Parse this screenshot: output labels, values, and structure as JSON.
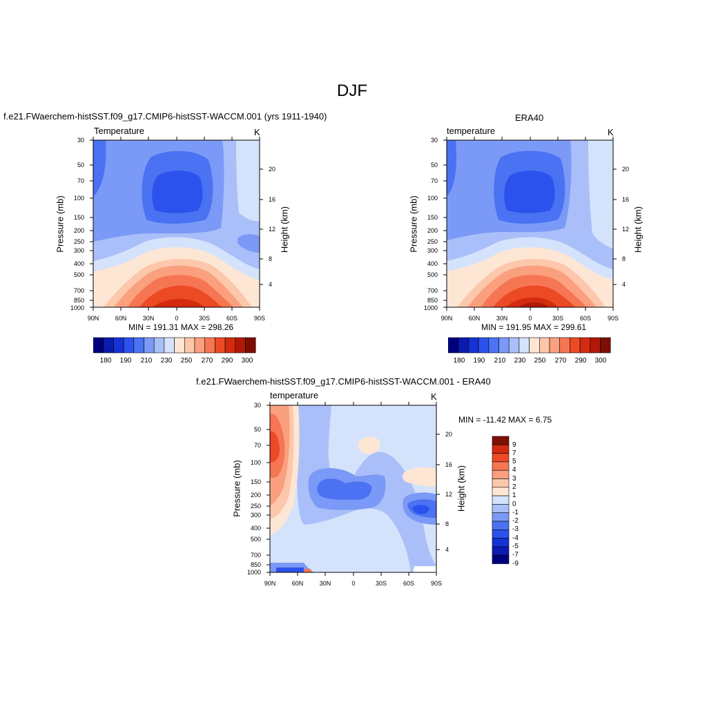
{
  "figure": {
    "title": "DJF"
  },
  "colors": {
    "abs_levels": [
      "#00007f",
      "#0a1bae",
      "#1532d6",
      "#2b52ec",
      "#4a72f2",
      "#7b99f6",
      "#aabff9",
      "#d4e3fb",
      "#fee6d4",
      "#fcc7ab",
      "#faa07e",
      "#f67654",
      "#ec4a24",
      "#d42a10",
      "#b01906",
      "#7d0e03"
    ],
    "diff_levels": [
      "#00007f",
      "#0a1bae",
      "#1532d6",
      "#2b52ec",
      "#4a72f2",
      "#7b99f6",
      "#aabff9",
      "#d4e3fb",
      "#fee6d4",
      "#fcc7ab",
      "#faa07e",
      "#f67654",
      "#ec4a24",
      "#d42a10",
      "#7d0e03"
    ]
  },
  "chart_data": [
    {
      "type": "contour",
      "id": "model",
      "panel_title": "f.e21.FWaerchem-histSST.f09_g17.CMIP6-histSST-WACCM.001 (yrs 1911-1940)",
      "title_left": "Temperature",
      "title_right": "K",
      "xlabel": "",
      "ylabel": "Pressure (mb)",
      "ylabel_right": "Height (km)",
      "x_ticks": [
        "90N",
        "60N",
        "30N",
        "0",
        "30S",
        "60S",
        "90S"
      ],
      "y_ticks": [
        30,
        50,
        70,
        100,
        150,
        200,
        250,
        300,
        400,
        500,
        700,
        850,
        1000
      ],
      "y_right_ticks": [
        4,
        8,
        12,
        16,
        20
      ],
      "ylim": [
        30,
        1000
      ],
      "y_scale": "log",
      "stats": "MIN = 191.31  MAX = 298.26",
      "min": 191.31,
      "max": 298.26,
      "colorbar_labels": [
        "180",
        "190",
        "210",
        "230",
        "250",
        "270",
        "290",
        "300"
      ]
    },
    {
      "type": "contour",
      "id": "era40",
      "panel_title": "ERA40",
      "title_left": "temperature",
      "title_right": "K",
      "xlabel": "",
      "ylabel": "Pressure (mb)",
      "ylabel_right": "Height (km)",
      "x_ticks": [
        "90N",
        "60N",
        "30N",
        "0",
        "30S",
        "60S",
        "90S"
      ],
      "y_ticks": [
        30,
        50,
        70,
        100,
        150,
        200,
        250,
        300,
        400,
        500,
        700,
        850,
        1000
      ],
      "y_right_ticks": [
        4,
        8,
        12,
        16,
        20
      ],
      "ylim": [
        30,
        1000
      ],
      "y_scale": "log",
      "stats": "MIN = 191.95  MAX = 299.61",
      "min": 191.95,
      "max": 299.61,
      "colorbar_labels": [
        "180",
        "190",
        "210",
        "230",
        "250",
        "270",
        "290",
        "300"
      ]
    },
    {
      "type": "contour",
      "id": "diff",
      "panel_title": "f.e21.FWaerchem-histSST.f09_g17.CMIP6-histSST-WACCM.001 - ERA40",
      "title_left": "temperature",
      "title_right": "K",
      "xlabel": "",
      "ylabel": "Pressure (mb)",
      "ylabel_right": "Height (km)",
      "x_ticks": [
        "90N",
        "60N",
        "30N",
        "0",
        "30S",
        "60S",
        "90S"
      ],
      "y_ticks": [
        30,
        50,
        70,
        100,
        150,
        200,
        250,
        300,
        400,
        500,
        700,
        850,
        1000
      ],
      "y_right_ticks": [
        4,
        8,
        12,
        16,
        20
      ],
      "ylim": [
        30,
        1000
      ],
      "y_scale": "log",
      "stats": "MIN = -11.42  MAX =   6.75",
      "min": -11.42,
      "max": 6.75,
      "colorbar_labels": [
        "9",
        "7",
        "5",
        "4",
        "3",
        "2",
        "1",
        "0",
        "-1",
        "-2",
        "-3",
        "-4",
        "-5",
        "-7",
        "-9"
      ]
    }
  ]
}
